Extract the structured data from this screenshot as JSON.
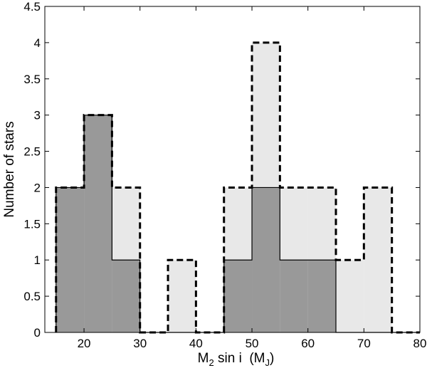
{
  "chart_data": {
    "type": "bar",
    "bin_edges": [
      15,
      20,
      25,
      30,
      35,
      40,
      45,
      50,
      55,
      60,
      65,
      70,
      75,
      80
    ],
    "series": [
      {
        "style": "dashed-light",
        "fill_color": "#e8e8e8",
        "values": [
          2,
          3,
          2,
          0,
          1,
          0,
          2,
          4,
          2,
          2,
          1,
          2,
          0
        ]
      },
      {
        "style": "solid-dark",
        "fill_color": "#999999",
        "values": [
          2,
          3,
          1,
          0,
          0,
          0,
          1,
          2,
          1,
          1,
          0,
          0,
          0
        ]
      }
    ],
    "xlabel": {
      "main": "M",
      "sub1": "2",
      "mid": " sin i  (M",
      "sub2": "J",
      "end": ")"
    },
    "ylabel": "Number of stars",
    "xlim": [
      13,
      80
    ],
    "ylim": [
      0,
      4.5
    ],
    "xticks": [
      20,
      30,
      40,
      50,
      60,
      70,
      80
    ],
    "yticks": [
      0,
      0.5,
      1,
      1.5,
      2,
      2.5,
      3,
      3.5,
      4,
      4.5
    ],
    "grid": false
  }
}
